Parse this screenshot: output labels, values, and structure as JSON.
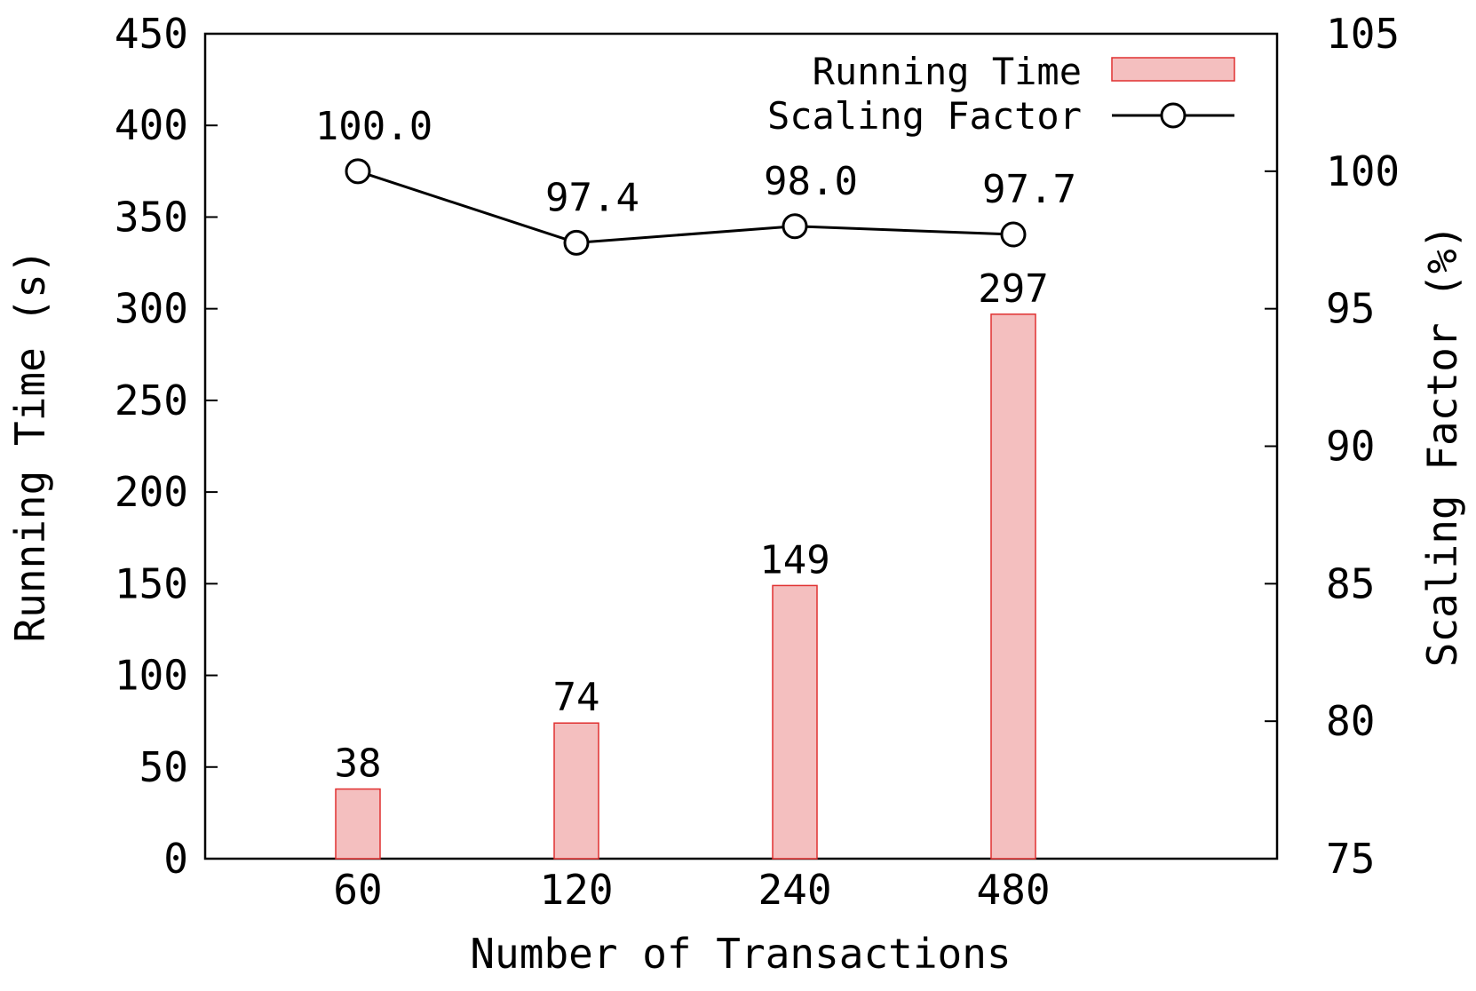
{
  "chart_data": {
    "type": "bar",
    "xlabel": "Number of Transactions",
    "ylabel_left": "Running Time (s)",
    "ylabel_right": "Scaling Factor (%)",
    "categories": [
      "60",
      "120",
      "240",
      "480"
    ],
    "ylim_left": [
      0,
      450
    ],
    "ylim_right": [
      75,
      105
    ],
    "yticks_left": [
      "0",
      "50",
      "100",
      "150",
      "200",
      "250",
      "300",
      "350",
      "400",
      "450"
    ],
    "yticks_right": [
      "75",
      "80",
      "85",
      "90",
      "95",
      "100",
      "105"
    ],
    "series": [
      {
        "name": "Running Time",
        "type": "bar",
        "axis": "left",
        "values": [
          38,
          74,
          149,
          297
        ],
        "labels": [
          "38",
          "74",
          "149",
          "297"
        ],
        "color": "#f4bfbf",
        "edge_color": "#e03030"
      },
      {
        "name": "Scaling Factor",
        "type": "line",
        "axis": "right",
        "marker": "open-circle",
        "values": [
          100.0,
          97.4,
          98.0,
          97.7
        ],
        "labels": [
          "100.0",
          "97.4",
          "98.0",
          "97.7"
        ],
        "color": "#000000"
      }
    ],
    "legend_position": "top-right",
    "grid": false
  }
}
